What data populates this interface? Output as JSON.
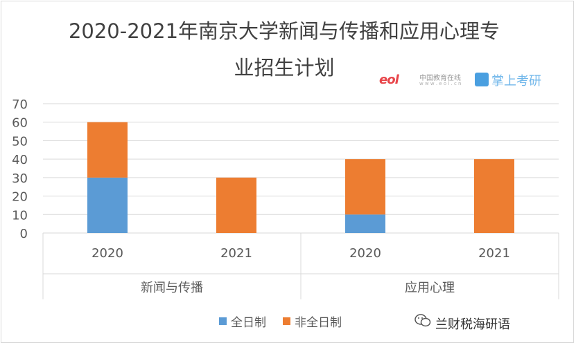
{
  "title_line1": "2020-2021年南京大学新闻与传播和应用心理专",
  "title_line2": "业招生计划",
  "logo": {
    "mark": "eol",
    "text": "中国教育在线",
    "url": "w w w . e o l . c n",
    "brand": "掌上考研"
  },
  "watermark": "兰财税海研语",
  "colors": {
    "full_time": "#5b9bd5",
    "part_time": "#ed7d31",
    "grid": "#d9d9d9"
  },
  "chart_data": {
    "type": "bar",
    "stacked": true,
    "groups": [
      {
        "name": "新闻与传播",
        "categories": [
          "2020",
          "2021"
        ]
      },
      {
        "name": "应用心理",
        "categories": [
          "2020",
          "2021"
        ]
      }
    ],
    "categories": [
      "2020",
      "2021",
      "2020",
      "2021"
    ],
    "series": [
      {
        "name": "全日制",
        "values": [
          30,
          0,
          10,
          0
        ]
      },
      {
        "name": "非全日制",
        "values": [
          30,
          30,
          30,
          40
        ]
      }
    ],
    "ylim": [
      0,
      70
    ],
    "yticks": [
      0,
      10,
      20,
      30,
      40,
      50,
      60,
      70
    ],
    "grid": true,
    "legend": "bottom"
  }
}
